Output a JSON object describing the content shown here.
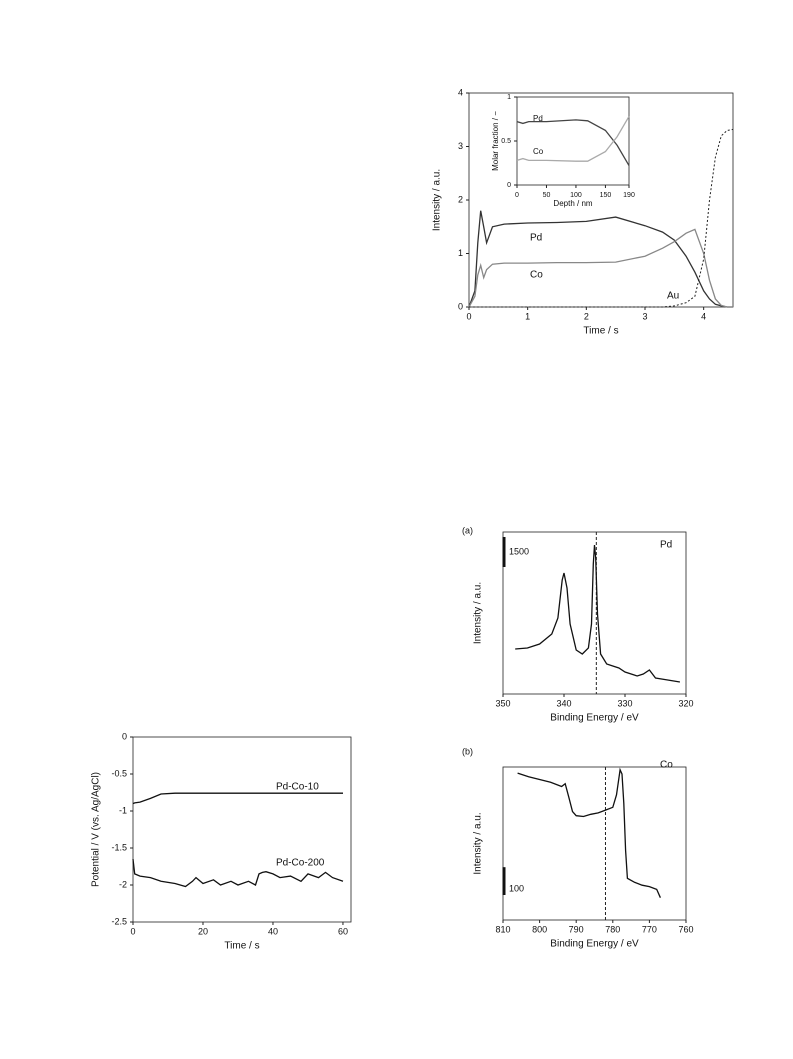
{
  "chart_data": [
    {
      "type": "line",
      "ylabel": "Intensity / a.u.",
      "xlabel": "Time / s",
      "x": [
        0,
        0.1,
        0.15,
        0.2,
        0.25,
        0.3,
        0.4,
        0.6,
        1,
        1.5,
        2,
        2.5,
        3,
        3.3,
        3.5,
        3.7,
        3.85,
        4,
        4.1,
        4.2,
        4.3,
        4.4,
        4.5
      ],
      "series": [
        {
          "name": "Pd",
          "color": "#333333",
          "dash": false,
          "values": [
            0,
            0.3,
            1.2,
            1.8,
            1.5,
            1.2,
            1.5,
            1.55,
            1.57,
            1.58,
            1.6,
            1.68,
            1.52,
            1.4,
            1.25,
            0.95,
            0.65,
            0.3,
            0.15,
            0.05,
            0.02,
            0,
            0
          ]
        },
        {
          "name": "Co",
          "color": "#888888",
          "dash": false,
          "values": [
            0,
            0.2,
            0.6,
            0.78,
            0.55,
            0.7,
            0.8,
            0.82,
            0.82,
            0.83,
            0.83,
            0.84,
            0.95,
            1.1,
            1.22,
            1.38,
            1.45,
            1.0,
            0.5,
            0.15,
            0.03,
            0,
            0
          ]
        },
        {
          "name": "Au",
          "color": "#222222",
          "dash": true,
          "values": [
            0,
            0,
            0,
            0,
            0,
            0,
            0,
            0,
            0,
            0,
            0,
            0,
            0,
            0,
            0.02,
            0.08,
            0.2,
            0.9,
            2.0,
            2.8,
            3.2,
            3.3,
            3.32
          ]
        }
      ],
      "xlim": [
        0,
        4.5
      ],
      "xticks": [
        0,
        1,
        2,
        3,
        4
      ],
      "ylim": [
        0,
        4
      ],
      "yticks": [
        0,
        1,
        2,
        3,
        4
      ]
    },
    {
      "type": "line",
      "ylabel": "Molar fraction / −",
      "xlabel": "Depth / nm",
      "x": [
        0,
        10,
        20,
        50,
        100,
        120,
        150,
        170,
        190
      ],
      "series": [
        {
          "name": "Pd",
          "color": "#444444",
          "dash": false,
          "values": [
            0.72,
            0.7,
            0.72,
            0.72,
            0.74,
            0.73,
            0.62,
            0.45,
            0.22
          ]
        },
        {
          "name": "Co",
          "color": "#aaaaaa",
          "dash": false,
          "values": [
            0.28,
            0.3,
            0.28,
            0.28,
            0.27,
            0.27,
            0.38,
            0.55,
            0.78
          ]
        }
      ],
      "xlim": [
        0,
        190
      ],
      "xticks": [
        0,
        50,
        100,
        150,
        190
      ],
      "ylim": [
        0,
        1
      ],
      "yticks": [
        0,
        0.5,
        1
      ]
    },
    {
      "type": "line",
      "panel_label": "(a)",
      "element": "Pd",
      "ylabel": "Intensity / a.u.",
      "xlabel": "Binding Energy / eV",
      "x": [
        348,
        346,
        344,
        342,
        341,
        340.3,
        340,
        339.5,
        339,
        338,
        337,
        336,
        335.5,
        335.2,
        335,
        334.8,
        334.5,
        334,
        333,
        332,
        331,
        330,
        328,
        327,
        326,
        325,
        323,
        321
      ],
      "series": [
        {
          "color": "#111111",
          "dash": false,
          "values": [
            2250,
            2300,
            2500,
            3000,
            3800,
            5700,
            6050,
            5300,
            3500,
            2200,
            2000,
            2300,
            3500,
            6500,
            7450,
            6800,
            4000,
            2000,
            1500,
            1400,
            1300,
            1100,
            900,
            1000,
            1200,
            800,
            700,
            600
          ]
        }
      ],
      "scale_bar": 1500,
      "ref_line": 334.7,
      "xlim": [
        350,
        320
      ],
      "xticks": [
        350,
        340,
        330,
        320
      ],
      "ylim": [
        0,
        8100
      ]
    },
    {
      "type": "line",
      "panel_label": "(b)",
      "element": "Co",
      "ylabel": "Intensity / a.u.",
      "xlabel": "Binding Energy / eV",
      "x": [
        806,
        803,
        800,
        797,
        794,
        793,
        792,
        791,
        790,
        788,
        786,
        784,
        782,
        780,
        779,
        778,
        777.5,
        777,
        776.5,
        776,
        774,
        772,
        770,
        768,
        767
      ],
      "series": [
        {
          "color": "#111111",
          "dash": false,
          "values": [
            528,
            515,
            505,
            495,
            480,
            490,
            440,
            390,
            375,
            372,
            380,
            385,
            395,
            405,
            450,
            540,
            525,
            420,
            250,
            150,
            135,
            125,
            120,
            110,
            80
          ]
        }
      ],
      "scale_bar": 100,
      "ref_line": 782,
      "xlim": [
        810,
        760
      ],
      "xticks": [
        810,
        800,
        790,
        780,
        770,
        760
      ],
      "ylim": [
        0,
        550
      ]
    },
    {
      "type": "line",
      "ylabel": "Potential / V (vs. Ag/AgCl)",
      "xlabel": "Time / s",
      "x": [
        0,
        0.5,
        2,
        5,
        8,
        12,
        15,
        17,
        18,
        20,
        23,
        25,
        28,
        30,
        33,
        35,
        36,
        37,
        38,
        40,
        42,
        45,
        48,
        50,
        53,
        55,
        57,
        60
      ],
      "series": [
        {
          "name": "Pd-Co-10",
          "color": "#111111",
          "dash": false,
          "values": [
            -0.9,
            -0.89,
            -0.88,
            -0.83,
            -0.77,
            -0.76,
            -0.76,
            -0.76,
            -0.76,
            -0.76,
            -0.76,
            -0.76,
            -0.76,
            -0.76,
            -0.76,
            -0.76,
            -0.76,
            -0.76,
            -0.76,
            -0.76,
            -0.76,
            -0.76,
            -0.76,
            -0.76,
            -0.76,
            -0.76,
            -0.76,
            -0.76
          ]
        },
        {
          "name": "Pd-Co-200",
          "color": "#111111",
          "dash": false,
          "values": [
            -1.65,
            -1.85,
            -1.88,
            -1.9,
            -1.95,
            -1.98,
            -2.02,
            -1.95,
            -1.9,
            -1.98,
            -1.93,
            -2.0,
            -1.95,
            -2.0,
            -1.95,
            -2.0,
            -1.85,
            -1.83,
            -1.82,
            -1.85,
            -1.9,
            -1.88,
            -1.95,
            -1.85,
            -1.9,
            -1.83,
            -1.9,
            -1.95
          ]
        }
      ],
      "xlim": [
        0,
        62.3
      ],
      "xticks": [
        0,
        20,
        40,
        60
      ],
      "ylim": [
        -2.5,
        0
      ],
      "yticks": [
        0,
        -0.5,
        -1,
        -1.5,
        -2,
        -2.5
      ]
    }
  ]
}
